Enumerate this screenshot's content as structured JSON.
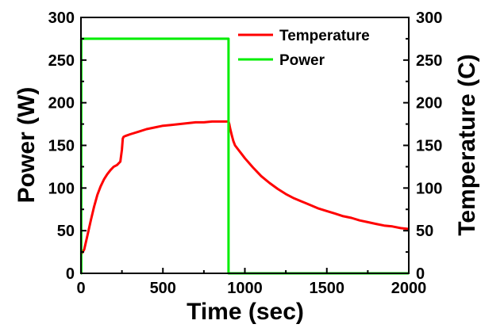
{
  "chart_data": {
    "type": "line",
    "xlabel": "Time (sec)",
    "ylabel_left": "Power (W)",
    "ylabel_right": "Temperature (C)",
    "xlim": [
      0,
      2000
    ],
    "ylim_left": [
      0,
      300
    ],
    "ylim_right": [
      0,
      300
    ],
    "x_ticks": [
      0,
      500,
      1000,
      1500,
      2000
    ],
    "y_ticks_left": [
      0,
      50,
      100,
      150,
      200,
      250,
      300
    ],
    "y_ticks_right": [
      0,
      50,
      100,
      150,
      200,
      250,
      300
    ],
    "grid": false,
    "legend_position": "top-right",
    "series": [
      {
        "name": "Temperature",
        "color": "#ff0000",
        "axis": "right",
        "x": [
          0,
          20,
          40,
          60,
          80,
          100,
          120,
          140,
          160,
          180,
          200,
          220,
          240,
          250,
          255,
          260,
          270,
          300,
          350,
          400,
          450,
          500,
          550,
          600,
          650,
          700,
          750,
          800,
          850,
          900,
          905,
          910,
          920,
          930,
          940,
          960,
          980,
          1000,
          1050,
          1100,
          1150,
          1200,
          1250,
          1300,
          1350,
          1400,
          1450,
          1500,
          1550,
          1600,
          1650,
          1700,
          1750,
          1800,
          1850,
          1900,
          1950,
          2000
        ],
        "y": [
          22,
          28,
          45,
          62,
          78,
          92,
          102,
          110,
          116,
          121,
          125,
          127,
          131,
          145,
          158,
          160,
          161,
          163,
          166,
          169,
          171,
          173,
          174,
          175,
          176,
          177,
          177,
          178,
          178,
          178,
          175,
          170,
          162,
          155,
          150,
          145,
          140,
          135,
          124,
          114,
          106,
          99,
          93,
          88,
          84,
          80,
          76,
          73,
          70,
          67,
          65,
          62,
          60,
          58,
          56,
          55,
          53,
          52
        ]
      },
      {
        "name": "Power",
        "color": "#00ee00",
        "axis": "left",
        "x": [
          0,
          2,
          2,
          900,
          900,
          2000
        ],
        "y": [
          0,
          0,
          275,
          275,
          0,
          0
        ]
      }
    ]
  }
}
